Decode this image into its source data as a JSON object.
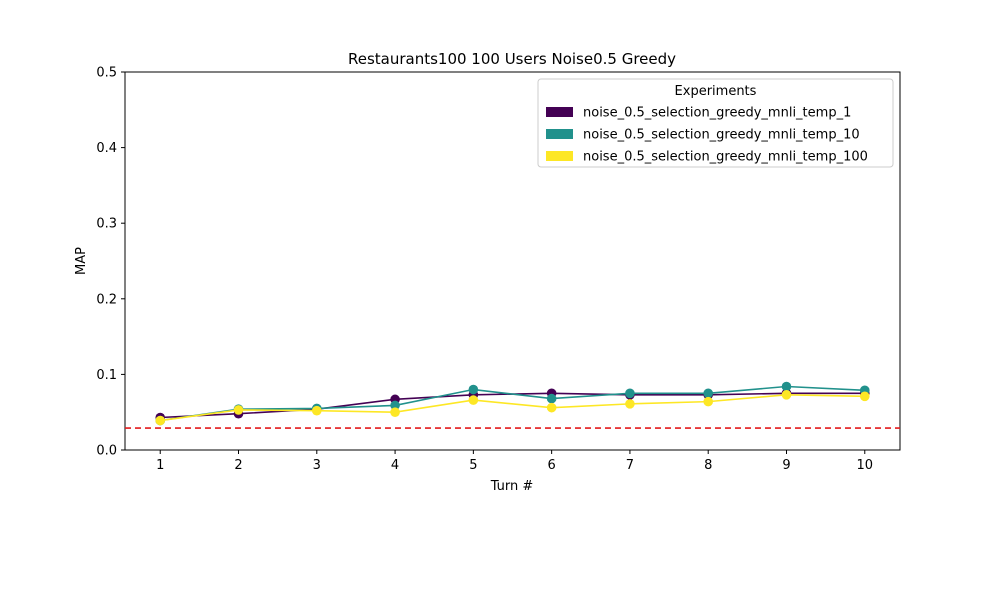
{
  "chart_data": {
    "type": "line",
    "title": "Restaurants100 100 Users Noise0.5 Greedy",
    "xlabel": "Turn #",
    "ylabel": "MAP",
    "x": [
      1,
      2,
      3,
      4,
      5,
      6,
      7,
      8,
      9,
      10
    ],
    "xlim": [
      0.55,
      10.45
    ],
    "ylim": [
      0.0,
      0.5
    ],
    "yticks": [
      "0.0",
      "0.1",
      "0.2",
      "0.3",
      "0.4",
      "0.5"
    ],
    "grid": false,
    "legend_title": "Experiments",
    "legend_position": "top-right",
    "baseline": {
      "value": 0.029,
      "color": "#e31a1c",
      "style": "dashed"
    },
    "series": [
      {
        "name": "noise_0.5_selection_greedy_mnli_temp_1",
        "color": "#440154",
        "values": [
          0.043,
          0.048,
          0.054,
          0.067,
          0.073,
          0.075,
          0.073,
          0.073,
          0.075,
          0.075
        ]
      },
      {
        "name": "noise_0.5_selection_greedy_mnli_temp_10",
        "color": "#21918c",
        "values": [
          0.039,
          0.054,
          0.055,
          0.059,
          0.08,
          0.068,
          0.075,
          0.075,
          0.084,
          0.079
        ]
      },
      {
        "name": "noise_0.5_selection_greedy_mnli_temp_100",
        "color": "#fde725",
        "values": [
          0.039,
          0.053,
          0.052,
          0.05,
          0.066,
          0.056,
          0.061,
          0.064,
          0.073,
          0.071
        ]
      }
    ]
  }
}
